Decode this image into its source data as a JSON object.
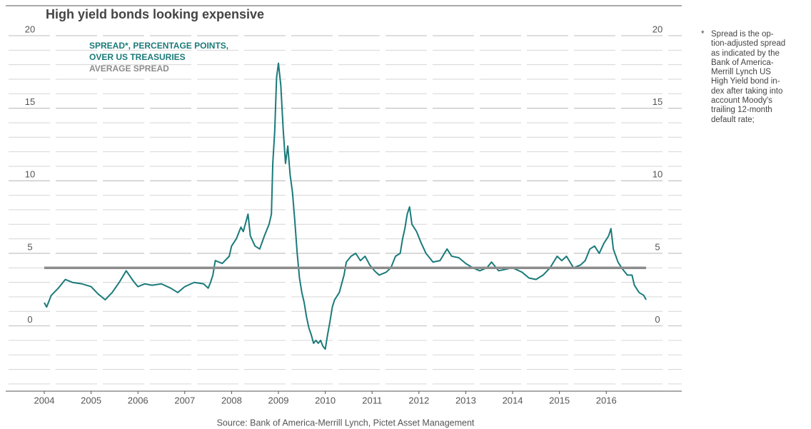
{
  "chart_data": {
    "type": "line",
    "title": "High yield bonds looking expensive",
    "source": "Source: Bank of America-Merrill Lynch, Pictet Asset Management",
    "note_marker": "*",
    "note_lines": [
      "Spread is the op-",
      "tion-adjusted spread",
      "as indicated by the",
      "Bank of America-",
      "Merrill Lynch US",
      "High Yield bond in-",
      "dex after taking into",
      "account Moody's",
      "trailing 12-month",
      "default rate;"
    ],
    "xlim": [
      2004,
      2016.85
    ],
    "xticks": [
      2004,
      2005,
      2006,
      2007,
      2008,
      2009,
      2010,
      2011,
      2012,
      2013,
      2014,
      2015,
      2016
    ],
    "ylim": [
      -4.5,
      20
    ],
    "yticks": [
      0,
      5,
      10,
      15,
      20
    ],
    "grid": true,
    "minor_grid": true,
    "x": [
      2004.0,
      2004.05,
      2004.15,
      2004.3,
      2004.45,
      2004.6,
      2004.8,
      2005.0,
      2005.15,
      2005.3,
      2005.45,
      2005.6,
      2005.75,
      2005.9,
      2006.0,
      2006.15,
      2006.3,
      2006.5,
      2006.7,
      2006.85,
      2007.0,
      2007.2,
      2007.4,
      2007.5,
      2007.55,
      2007.6,
      2007.65,
      2007.8,
      2007.95,
      2008.0,
      2008.1,
      2008.2,
      2008.25,
      2008.35,
      2008.4,
      2008.5,
      2008.6,
      2008.7,
      2008.8,
      2008.85,
      2008.88,
      2008.92,
      2008.96,
      2009.0,
      2009.05,
      2009.1,
      2009.15,
      2009.2,
      2009.25,
      2009.3,
      2009.35,
      2009.4,
      2009.45,
      2009.5,
      2009.55,
      2009.6,
      2009.65,
      2009.7,
      2009.75,
      2009.8,
      2009.85,
      2009.9,
      2009.95,
      2010.0,
      2010.05,
      2010.1,
      2010.15,
      2010.2,
      2010.3,
      2010.4,
      2010.45,
      2010.55,
      2010.65,
      2010.75,
      2010.85,
      2010.95,
      2011.05,
      2011.15,
      2011.3,
      2011.4,
      2011.5,
      2011.6,
      2011.65,
      2011.7,
      2011.75,
      2011.8,
      2011.85,
      2011.95,
      2012.05,
      2012.15,
      2012.3,
      2012.45,
      2012.6,
      2012.7,
      2012.85,
      2013.0,
      2013.15,
      2013.3,
      2013.45,
      2013.55,
      2013.7,
      2013.85,
      2014.0,
      2014.2,
      2014.35,
      2014.5,
      2014.65,
      2014.8,
      2014.95,
      2015.05,
      2015.15,
      2015.3,
      2015.45,
      2015.55,
      2015.65,
      2015.75,
      2015.85,
      2015.95,
      2016.05,
      2016.1,
      2016.15,
      2016.25,
      2016.35,
      2016.45,
      2016.55,
      2016.6,
      2016.7,
      2016.8,
      2016.85
    ],
    "series": [
      {
        "name": "SPREAD*, PERCENTAGE POINTS, OVER US TREASURIES",
        "color": "#1b7a7a",
        "values": [
          1.6,
          1.3,
          2.1,
          2.6,
          3.2,
          3.0,
          2.9,
          2.7,
          2.2,
          1.8,
          2.3,
          3.0,
          3.8,
          3.1,
          2.7,
          2.9,
          2.8,
          2.9,
          2.6,
          2.3,
          2.7,
          3.0,
          2.9,
          2.6,
          3.0,
          3.5,
          4.5,
          4.3,
          4.8,
          5.5,
          6.0,
          6.8,
          6.5,
          7.7,
          6.2,
          5.5,
          5.3,
          6.2,
          7.0,
          7.7,
          11.2,
          13.4,
          17.1,
          18.1,
          16.6,
          13.6,
          11.2,
          12.4,
          10.4,
          9.2,
          7.2,
          5.0,
          3.3,
          2.3,
          1.6,
          0.6,
          -0.15,
          -0.6,
          -1.2,
          -1.0,
          -1.2,
          -1.0,
          -1.4,
          -1.6,
          -0.6,
          0.3,
          1.3,
          1.8,
          2.3,
          3.5,
          4.4,
          4.8,
          5.0,
          4.5,
          4.8,
          4.2,
          3.8,
          3.5,
          3.7,
          4.0,
          4.8,
          5.0,
          6.0,
          6.7,
          7.7,
          8.2,
          7.0,
          6.5,
          5.7,
          5.0,
          4.4,
          4.5,
          5.3,
          4.8,
          4.7,
          4.3,
          4.0,
          3.8,
          4.0,
          4.4,
          3.8,
          3.9,
          4.0,
          3.7,
          3.3,
          3.2,
          3.5,
          4.0,
          4.8,
          4.5,
          4.8,
          4.0,
          4.2,
          4.5,
          5.3,
          5.5,
          5.0,
          5.7,
          6.2,
          6.7,
          5.3,
          4.4,
          3.9,
          3.5,
          3.5,
          2.8,
          2.3,
          2.1,
          1.8
        ]
      }
    ],
    "reference_line": {
      "name": "AVERAGE SPREAD",
      "value": 4.0,
      "color": "#8c8c8c"
    }
  }
}
